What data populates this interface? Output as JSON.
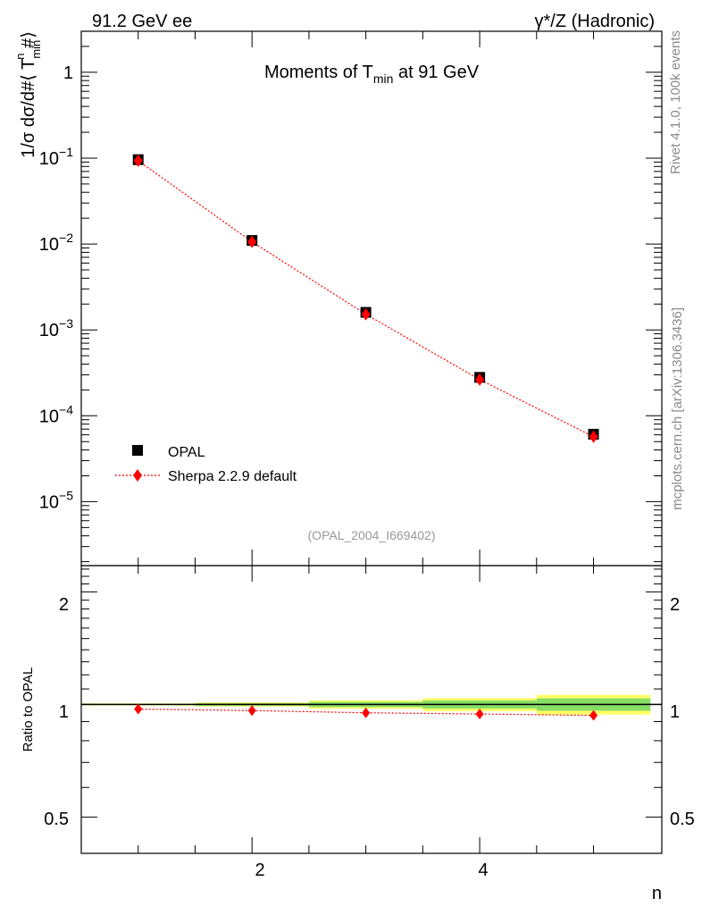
{
  "header": {
    "left": "91.2 GeV ee",
    "right": "γ*/Z (Hadronic)"
  },
  "side_labels": {
    "rivet": "Rivet 4.1.0,  100k events",
    "mcplots": "mcplots.cern.ch [arXiv:1306.3436]"
  },
  "main_plot": {
    "title_prefix": "Moments of T",
    "title_sub": "min",
    "title_suffix": " at 91 GeV",
    "ylabel_prefix": "1/σ  dσ/d#⟨ T",
    "ylabel_sub": "min",
    "ylabel_sup": "n",
    "ylabel_suffix": " #⟩",
    "watermark": "(OPAL_2004_I669402)",
    "y_tick_labels": [
      {
        "base": "10",
        "exp": "−5",
        "value": 1e-05
      },
      {
        "base": "10",
        "exp": "−4",
        "value": 0.0001
      },
      {
        "base": "10",
        "exp": "−3",
        "value": 0.001
      },
      {
        "base": "10",
        "exp": "−2",
        "value": 0.01
      },
      {
        "base": "10",
        "exp": "−1",
        "value": 0.1
      },
      {
        "base": "1",
        "exp": "",
        "value": 1
      }
    ]
  },
  "ratio_plot": {
    "ylabel": "Ratio to OPAL",
    "xlabel": "n",
    "y_tick_labels_left": [
      "0.5",
      "1",
      "2"
    ],
    "y_tick_labels_right": [
      "0.5",
      "1",
      "2"
    ],
    "x_tick_labels": [
      "2",
      "4"
    ]
  },
  "legend": {
    "items": [
      {
        "label": "OPAL",
        "marker": "square",
        "color": "#000000"
      },
      {
        "label": "Sherpa 2.2.9 default",
        "marker": "diamond",
        "color": "#ff0000"
      }
    ]
  },
  "chart_data": {
    "type": "scatter",
    "title": "Moments of T_min at 91 GeV",
    "xlabel": "n",
    "ylabel": "1/σ dσ/d#⟨ T_min^n #⟩",
    "x_range": [
      0.5,
      5.6
    ],
    "y_scale": "log",
    "ylim": [
      1.8e-06,
      3.0
    ],
    "ratio_ylim": [
      0.4,
      2.35
    ],
    "ratio_scale": "log",
    "x_ticks_labeled": [
      2,
      4
    ],
    "legend_position": "lower-left",
    "series": [
      {
        "name": "OPAL",
        "color": "#000000",
        "marker": "square",
        "x": [
          1,
          2,
          3,
          4,
          5
        ],
        "y": [
          0.096,
          0.011,
          0.0016,
          0.00028,
          6.1e-05
        ],
        "ratio_band_half_width": [
          0.004,
          0.008,
          0.016,
          0.025,
          0.038
        ]
      },
      {
        "name": "Sherpa 2.2.9 default",
        "color": "#ff0000",
        "marker": "diamond",
        "line": "dotted",
        "x": [
          1,
          2,
          3,
          4,
          5
        ],
        "y": [
          0.0933,
          0.0106,
          0.00152,
          0.000264,
          5.7e-05
        ],
        "ratio": [
          0.972,
          0.963,
          0.95,
          0.943,
          0.935
        ]
      }
    ]
  }
}
